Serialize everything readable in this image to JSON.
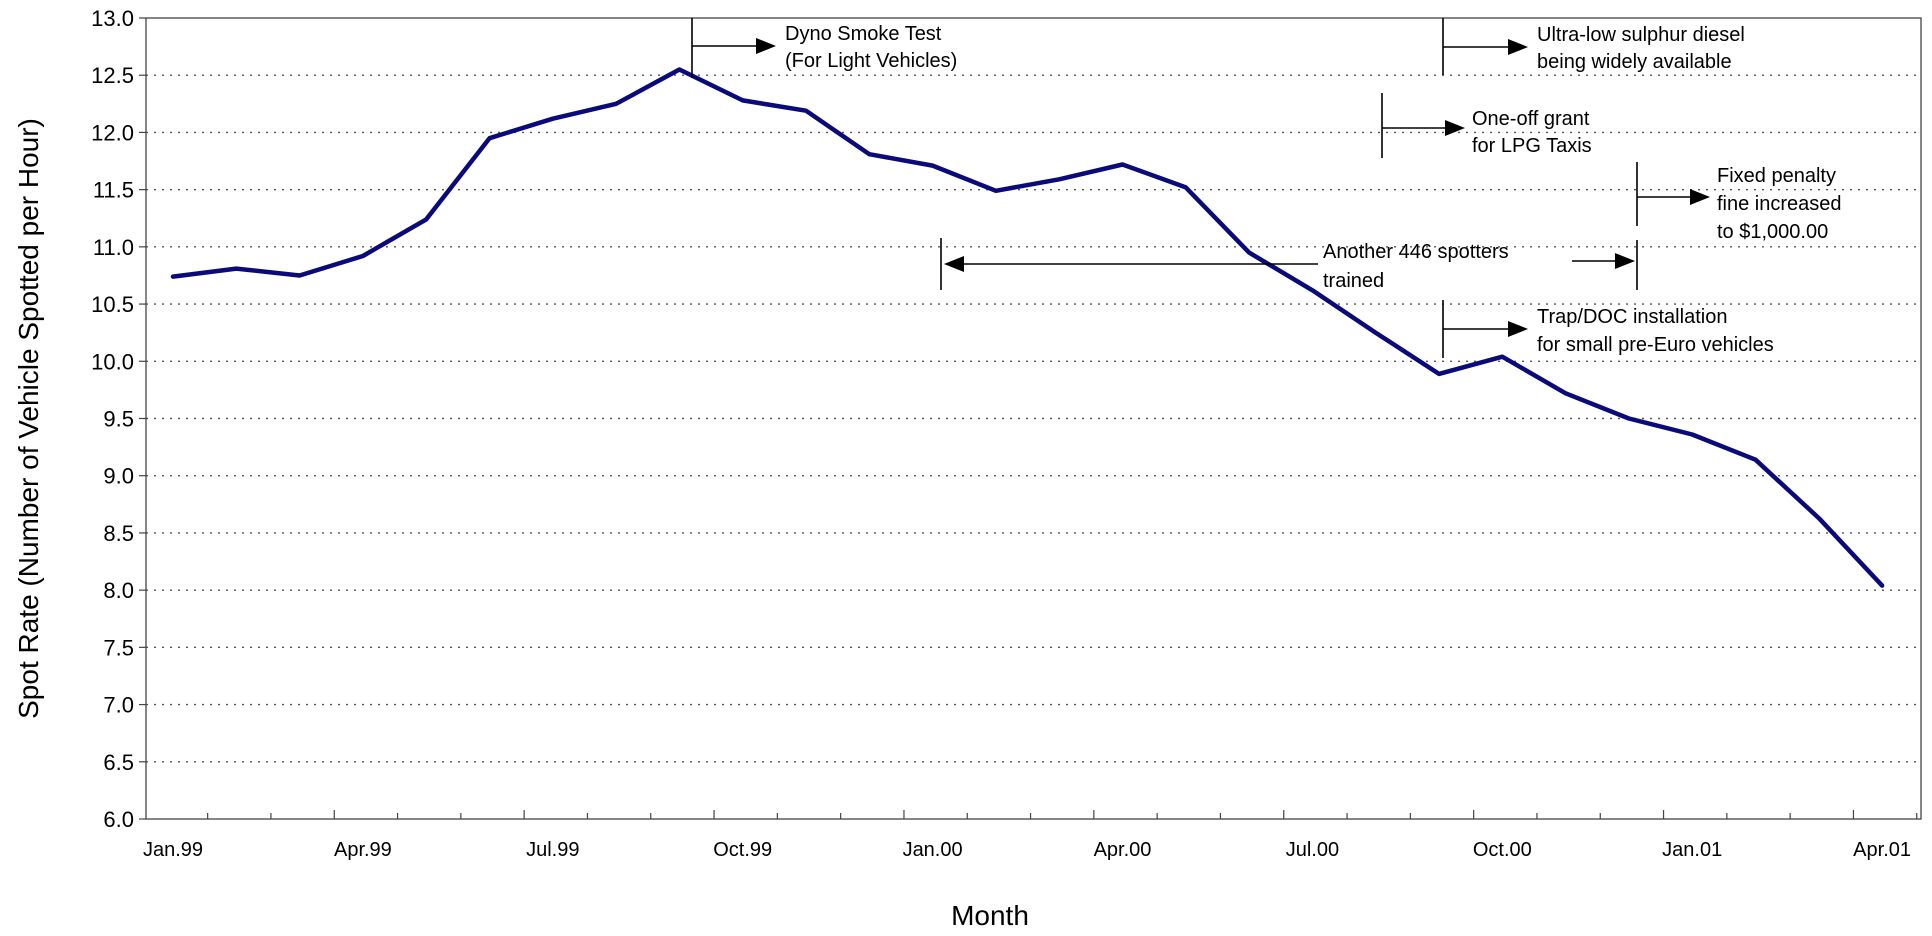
{
  "chart_data": {
    "type": "line",
    "title": "",
    "xlabel": "Month",
    "ylabel": "Spot Rate  (Number of Vehicle Spotted per Hour)",
    "ylim": [
      6.0,
      13.0
    ],
    "yticks": [
      "6.0",
      "6.5",
      "7.0",
      "7.5",
      "8.0",
      "8.5",
      "9.0",
      "9.5",
      "10.0",
      "10.5",
      "11.0",
      "11.5",
      "12.0",
      "12.5",
      "13.0"
    ],
    "xtick_labels": [
      "Jan.99",
      "Apr.99",
      "Jul.99",
      "Oct.99",
      "Jan.00",
      "Apr.00",
      "Jul.00",
      "Oct.00",
      "Jan.01",
      "Apr.01"
    ],
    "grid": true,
    "line_color": "#0a0a7a",
    "series": [
      {
        "x": [
          "Jan.99",
          "Feb.99",
          "Mar.99",
          "Apr.99",
          "May.99",
          "Jun.99",
          "Jul.99",
          "Aug.99",
          "Sep.99",
          "Oct.99",
          "Nov.99",
          "Dec.99",
          "Jan.00",
          "Feb.00",
          "Mar.00",
          "Apr.00",
          "May.00",
          "Jun.00",
          "Jul.00",
          "Aug.00",
          "Sep.00",
          "Oct.00",
          "Nov.00",
          "Dec.00",
          "Jan.01",
          "Feb.01",
          "Mar.01",
          "Apr.01"
        ],
        "values": [
          10.74,
          10.81,
          10.75,
          10.92,
          11.24,
          11.95,
          12.12,
          12.25,
          12.55,
          12.28,
          12.19,
          11.81,
          11.71,
          11.49,
          11.59,
          11.72,
          11.52,
          10.95,
          10.62,
          10.25,
          9.89,
          10.04,
          9.72,
          9.5,
          9.36,
          9.14,
          8.63,
          8.04
        ]
      }
    ],
    "annotations": [
      {
        "lines": [
          "Dyno Smoke Test",
          "(For Light Vehicles)"
        ]
      },
      {
        "lines": [
          "Ultra-low sulphur diesel",
          "being widely available"
        ]
      },
      {
        "lines": [
          "One-off grant",
          "for LPG Taxis"
        ]
      },
      {
        "lines": [
          "Fixed penalty",
          "fine increased",
          "to $1,000.00"
        ]
      },
      {
        "lines": [
          "Another 446 spotters",
          "trained"
        ]
      },
      {
        "lines": [
          "Trap/DOC installation",
          "for small pre-Euro vehicles"
        ]
      }
    ]
  }
}
